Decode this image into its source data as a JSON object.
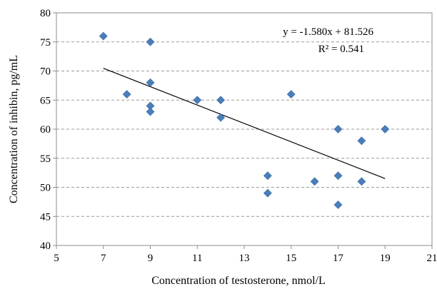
{
  "chart_data": {
    "type": "scatter",
    "xlabel": "Concentration of testosterone, nmol/L",
    "ylabel": "Concentration of inhibin, pg/mL",
    "xlim": [
      5,
      21
    ],
    "ylim": [
      40,
      80
    ],
    "xticks": [
      "5",
      "7",
      "9",
      "11",
      "13",
      "15",
      "17",
      "19",
      "21"
    ],
    "yticks": [
      "40",
      "45",
      "50",
      "55",
      "60",
      "65",
      "70",
      "75",
      "80"
    ],
    "grid": "horizontal dashed",
    "marker_color": "#4a7ebb",
    "trendline": {
      "slope": -1.58,
      "intercept": 81.526,
      "x_range": [
        7,
        19
      ],
      "equation_label": "y = -1.580x + 81.526",
      "r2_label": "R² = 0.541"
    },
    "points": [
      {
        "x": 7,
        "y": 76
      },
      {
        "x": 8,
        "y": 66
      },
      {
        "x": 9,
        "y": 75
      },
      {
        "x": 9,
        "y": 68
      },
      {
        "x": 9,
        "y": 64
      },
      {
        "x": 9,
        "y": 63
      },
      {
        "x": 11,
        "y": 65
      },
      {
        "x": 12,
        "y": 65
      },
      {
        "x": 12,
        "y": 62
      },
      {
        "x": 14,
        "y": 52
      },
      {
        "x": 14,
        "y": 49
      },
      {
        "x": 15,
        "y": 66
      },
      {
        "x": 16,
        "y": 51
      },
      {
        "x": 17,
        "y": 60
      },
      {
        "x": 17,
        "y": 52
      },
      {
        "x": 17,
        "y": 47
      },
      {
        "x": 18,
        "y": 58
      },
      {
        "x": 18,
        "y": 51
      },
      {
        "x": 19,
        "y": 60
      }
    ]
  }
}
